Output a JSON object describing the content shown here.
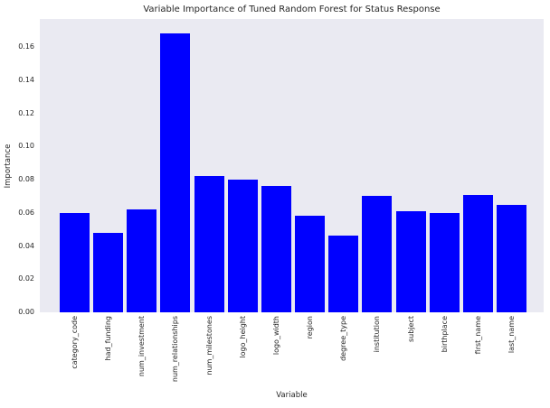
{
  "chart_data": {
    "type": "bar",
    "title": "Variable Importance of Tuned Random Forest for Status Response",
    "xlabel": "Variable",
    "ylabel": "Importance",
    "categories": [
      "category_code",
      "had_funding",
      "num_investment",
      "num_relationships",
      "num_milestones",
      "logo_height",
      "logo_width",
      "region",
      "degree_type",
      "institution",
      "subject",
      "birthplace",
      "first_name",
      "last_name"
    ],
    "values": [
      0.06,
      0.048,
      0.062,
      0.168,
      0.082,
      0.08,
      0.076,
      0.058,
      0.046,
      0.07,
      0.061,
      0.06,
      0.071,
      0.065
    ],
    "yticks": [
      0.0,
      0.02,
      0.04,
      0.06,
      0.08,
      0.1,
      0.12,
      0.14,
      0.16
    ],
    "ytick_labels": [
      "0.00",
      "0.02",
      "0.04",
      "0.06",
      "0.08",
      "0.10",
      "0.12",
      "0.14",
      "0.16"
    ],
    "ylim": [
      0,
      0.1769
    ],
    "grid": false,
    "legend": null,
    "bar_color": "#0000FF",
    "plot_bg_color": "#EAEAF2",
    "fig_bg_color": "#FFFFFF",
    "text_color": "#262626"
  }
}
